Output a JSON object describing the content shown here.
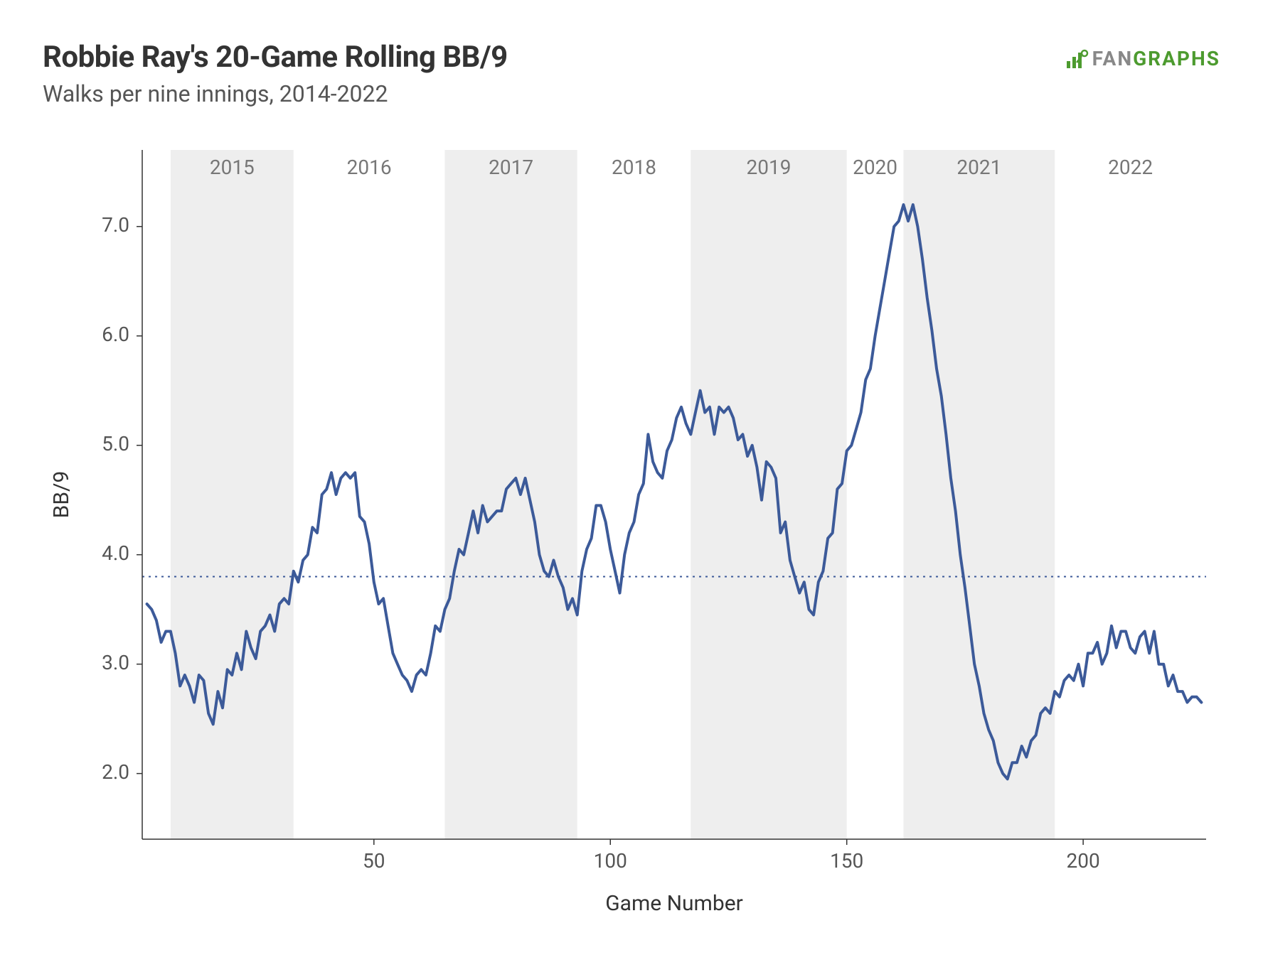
{
  "header": {
    "title": "Robbie Ray's 20-Game Rolling BB/9",
    "subtitle": "Walks per nine innings, 2014-2022"
  },
  "brand": {
    "prefix": "FAN",
    "suffix": "GRAPHS",
    "prefix_color": "#888888",
    "suffix_color": "#4d9b2f",
    "icon_color": "#4d9b2f"
  },
  "chart": {
    "type": "line",
    "xlabel": "Game Number",
    "ylabel": "BB/9",
    "xlim": [
      1,
      226
    ],
    "ylim": [
      1.4,
      7.7
    ],
    "ytick_values": [
      2.0,
      3.0,
      4.0,
      5.0,
      6.0,
      7.0
    ],
    "ytick_labels": [
      "2.0",
      "3.0",
      "4.0",
      "5.0",
      "6.0",
      "7.0"
    ],
    "xtick_values": [
      50,
      100,
      150,
      200
    ],
    "xtick_labels": [
      "50",
      "100",
      "150",
      "200"
    ],
    "reference_line": {
      "y": 3.8,
      "color": "#3c5a99",
      "dash": "3,6",
      "width": 2
    },
    "line": {
      "color": "#3c5a99",
      "width": 4
    },
    "background_color": "#ffffff",
    "panel_border_color": "#333333",
    "panel_border_width": 1.5,
    "year_bands": [
      {
        "label": "2015",
        "start": 7,
        "end": 33,
        "shaded": true
      },
      {
        "label": "2016",
        "start": 33,
        "end": 65,
        "shaded": false
      },
      {
        "label": "2017",
        "start": 65,
        "end": 93,
        "shaded": true
      },
      {
        "label": "2018",
        "start": 93,
        "end": 117,
        "shaded": false
      },
      {
        "label": "2019",
        "start": 117,
        "end": 150,
        "shaded": true
      },
      {
        "label": "2020",
        "start": 150,
        "end": 162,
        "shaded": false
      },
      {
        "label": "2021",
        "start": 162,
        "end": 194,
        "shaded": true
      },
      {
        "label": "2022",
        "start": 194,
        "end": 226,
        "shaded": false
      }
    ],
    "shade_color": "#eeeeee",
    "year_label_color": "#777777",
    "year_label_fontsize": 28,
    "axis_label_fontsize": 30,
    "tick_label_fontsize": 28,
    "data": [
      {
        "x": 2,
        "y": 3.55
      },
      {
        "x": 3,
        "y": 3.5
      },
      {
        "x": 4,
        "y": 3.4
      },
      {
        "x": 5,
        "y": 3.2
      },
      {
        "x": 6,
        "y": 3.3
      },
      {
        "x": 7,
        "y": 3.3
      },
      {
        "x": 8,
        "y": 3.1
      },
      {
        "x": 9,
        "y": 2.8
      },
      {
        "x": 10,
        "y": 2.9
      },
      {
        "x": 11,
        "y": 2.8
      },
      {
        "x": 12,
        "y": 2.65
      },
      {
        "x": 13,
        "y": 2.9
      },
      {
        "x": 14,
        "y": 2.85
      },
      {
        "x": 15,
        "y": 2.55
      },
      {
        "x": 16,
        "y": 2.45
      },
      {
        "x": 17,
        "y": 2.75
      },
      {
        "x": 18,
        "y": 2.6
      },
      {
        "x": 19,
        "y": 2.95
      },
      {
        "x": 20,
        "y": 2.9
      },
      {
        "x": 21,
        "y": 3.1
      },
      {
        "x": 22,
        "y": 2.95
      },
      {
        "x": 23,
        "y": 3.3
      },
      {
        "x": 24,
        "y": 3.15
      },
      {
        "x": 25,
        "y": 3.05
      },
      {
        "x": 26,
        "y": 3.3
      },
      {
        "x": 27,
        "y": 3.35
      },
      {
        "x": 28,
        "y": 3.45
      },
      {
        "x": 29,
        "y": 3.3
      },
      {
        "x": 30,
        "y": 3.55
      },
      {
        "x": 31,
        "y": 3.6
      },
      {
        "x": 32,
        "y": 3.55
      },
      {
        "x": 33,
        "y": 3.85
      },
      {
        "x": 34,
        "y": 3.75
      },
      {
        "x": 35,
        "y": 3.95
      },
      {
        "x": 36,
        "y": 4.0
      },
      {
        "x": 37,
        "y": 4.25
      },
      {
        "x": 38,
        "y": 4.2
      },
      {
        "x": 39,
        "y": 4.55
      },
      {
        "x": 40,
        "y": 4.6
      },
      {
        "x": 41,
        "y": 4.75
      },
      {
        "x": 42,
        "y": 4.55
      },
      {
        "x": 43,
        "y": 4.7
      },
      {
        "x": 44,
        "y": 4.75
      },
      {
        "x": 45,
        "y": 4.7
      },
      {
        "x": 46,
        "y": 4.75
      },
      {
        "x": 47,
        "y": 4.35
      },
      {
        "x": 48,
        "y": 4.3
      },
      {
        "x": 49,
        "y": 4.1
      },
      {
        "x": 50,
        "y": 3.75
      },
      {
        "x": 51,
        "y": 3.55
      },
      {
        "x": 52,
        "y": 3.6
      },
      {
        "x": 53,
        "y": 3.35
      },
      {
        "x": 54,
        "y": 3.1
      },
      {
        "x": 55,
        "y": 3.0
      },
      {
        "x": 56,
        "y": 2.9
      },
      {
        "x": 57,
        "y": 2.85
      },
      {
        "x": 58,
        "y": 2.75
      },
      {
        "x": 59,
        "y": 2.9
      },
      {
        "x": 60,
        "y": 2.95
      },
      {
        "x": 61,
        "y": 2.9
      },
      {
        "x": 62,
        "y": 3.1
      },
      {
        "x": 63,
        "y": 3.35
      },
      {
        "x": 64,
        "y": 3.3
      },
      {
        "x": 65,
        "y": 3.5
      },
      {
        "x": 66,
        "y": 3.6
      },
      {
        "x": 67,
        "y": 3.85
      },
      {
        "x": 68,
        "y": 4.05
      },
      {
        "x": 69,
        "y": 4.0
      },
      {
        "x": 70,
        "y": 4.2
      },
      {
        "x": 71,
        "y": 4.4
      },
      {
        "x": 72,
        "y": 4.2
      },
      {
        "x": 73,
        "y": 4.45
      },
      {
        "x": 74,
        "y": 4.3
      },
      {
        "x": 75,
        "y": 4.35
      },
      {
        "x": 76,
        "y": 4.4
      },
      {
        "x": 77,
        "y": 4.4
      },
      {
        "x": 78,
        "y": 4.6
      },
      {
        "x": 79,
        "y": 4.65
      },
      {
        "x": 80,
        "y": 4.7
      },
      {
        "x": 81,
        "y": 4.55
      },
      {
        "x": 82,
        "y": 4.7
      },
      {
        "x": 83,
        "y": 4.5
      },
      {
        "x": 84,
        "y": 4.3
      },
      {
        "x": 85,
        "y": 4.0
      },
      {
        "x": 86,
        "y": 3.85
      },
      {
        "x": 87,
        "y": 3.8
      },
      {
        "x": 88,
        "y": 3.95
      },
      {
        "x": 89,
        "y": 3.8
      },
      {
        "x": 90,
        "y": 3.7
      },
      {
        "x": 91,
        "y": 3.5
      },
      {
        "x": 92,
        "y": 3.6
      },
      {
        "x": 93,
        "y": 3.45
      },
      {
        "x": 94,
        "y": 3.85
      },
      {
        "x": 95,
        "y": 4.05
      },
      {
        "x": 96,
        "y": 4.15
      },
      {
        "x": 97,
        "y": 4.45
      },
      {
        "x": 98,
        "y": 4.45
      },
      {
        "x": 99,
        "y": 4.3
      },
      {
        "x": 100,
        "y": 4.05
      },
      {
        "x": 101,
        "y": 3.85
      },
      {
        "x": 102,
        "y": 3.65
      },
      {
        "x": 103,
        "y": 4.0
      },
      {
        "x": 104,
        "y": 4.2
      },
      {
        "x": 105,
        "y": 4.3
      },
      {
        "x": 106,
        "y": 4.55
      },
      {
        "x": 107,
        "y": 4.65
      },
      {
        "x": 108,
        "y": 5.1
      },
      {
        "x": 109,
        "y": 4.85
      },
      {
        "x": 110,
        "y": 4.75
      },
      {
        "x": 111,
        "y": 4.7
      },
      {
        "x": 112,
        "y": 4.95
      },
      {
        "x": 113,
        "y": 5.05
      },
      {
        "x": 114,
        "y": 5.25
      },
      {
        "x": 115,
        "y": 5.35
      },
      {
        "x": 116,
        "y": 5.2
      },
      {
        "x": 117,
        "y": 5.1
      },
      {
        "x": 118,
        "y": 5.3
      },
      {
        "x": 119,
        "y": 5.5
      },
      {
        "x": 120,
        "y": 5.3
      },
      {
        "x": 121,
        "y": 5.35
      },
      {
        "x": 122,
        "y": 5.1
      },
      {
        "x": 123,
        "y": 5.35
      },
      {
        "x": 124,
        "y": 5.3
      },
      {
        "x": 125,
        "y": 5.35
      },
      {
        "x": 126,
        "y": 5.25
      },
      {
        "x": 127,
        "y": 5.05
      },
      {
        "x": 128,
        "y": 5.1
      },
      {
        "x": 129,
        "y": 4.9
      },
      {
        "x": 130,
        "y": 5.0
      },
      {
        "x": 131,
        "y": 4.8
      },
      {
        "x": 132,
        "y": 4.5
      },
      {
        "x": 133,
        "y": 4.85
      },
      {
        "x": 134,
        "y": 4.8
      },
      {
        "x": 135,
        "y": 4.7
      },
      {
        "x": 136,
        "y": 4.2
      },
      {
        "x": 137,
        "y": 4.3
      },
      {
        "x": 138,
        "y": 3.95
      },
      {
        "x": 139,
        "y": 3.8
      },
      {
        "x": 140,
        "y": 3.65
      },
      {
        "x": 141,
        "y": 3.75
      },
      {
        "x": 142,
        "y": 3.5
      },
      {
        "x": 143,
        "y": 3.45
      },
      {
        "x": 144,
        "y": 3.75
      },
      {
        "x": 145,
        "y": 3.85
      },
      {
        "x": 146,
        "y": 4.15
      },
      {
        "x": 147,
        "y": 4.2
      },
      {
        "x": 148,
        "y": 4.6
      },
      {
        "x": 149,
        "y": 4.65
      },
      {
        "x": 150,
        "y": 4.95
      },
      {
        "x": 151,
        "y": 5.0
      },
      {
        "x": 152,
        "y": 5.15
      },
      {
        "x": 153,
        "y": 5.3
      },
      {
        "x": 154,
        "y": 5.6
      },
      {
        "x": 155,
        "y": 5.7
      },
      {
        "x": 156,
        "y": 6.0
      },
      {
        "x": 157,
        "y": 6.25
      },
      {
        "x": 158,
        "y": 6.5
      },
      {
        "x": 159,
        "y": 6.75
      },
      {
        "x": 160,
        "y": 7.0
      },
      {
        "x": 161,
        "y": 7.05
      },
      {
        "x": 162,
        "y": 7.2
      },
      {
        "x": 163,
        "y": 7.05
      },
      {
        "x": 164,
        "y": 7.2
      },
      {
        "x": 165,
        "y": 7.0
      },
      {
        "x": 166,
        "y": 6.7
      },
      {
        "x": 167,
        "y": 6.35
      },
      {
        "x": 168,
        "y": 6.05
      },
      {
        "x": 169,
        "y": 5.7
      },
      {
        "x": 170,
        "y": 5.45
      },
      {
        "x": 171,
        "y": 5.1
      },
      {
        "x": 172,
        "y": 4.7
      },
      {
        "x": 173,
        "y": 4.4
      },
      {
        "x": 174,
        "y": 4.0
      },
      {
        "x": 175,
        "y": 3.7
      },
      {
        "x": 176,
        "y": 3.35
      },
      {
        "x": 177,
        "y": 3.0
      },
      {
        "x": 178,
        "y": 2.8
      },
      {
        "x": 179,
        "y": 2.55
      },
      {
        "x": 180,
        "y": 2.4
      },
      {
        "x": 181,
        "y": 2.3
      },
      {
        "x": 182,
        "y": 2.1
      },
      {
        "x": 183,
        "y": 2.0
      },
      {
        "x": 184,
        "y": 1.95
      },
      {
        "x": 185,
        "y": 2.1
      },
      {
        "x": 186,
        "y": 2.1
      },
      {
        "x": 187,
        "y": 2.25
      },
      {
        "x": 188,
        "y": 2.15
      },
      {
        "x": 189,
        "y": 2.3
      },
      {
        "x": 190,
        "y": 2.35
      },
      {
        "x": 191,
        "y": 2.55
      },
      {
        "x": 192,
        "y": 2.6
      },
      {
        "x": 193,
        "y": 2.55
      },
      {
        "x": 194,
        "y": 2.75
      },
      {
        "x": 195,
        "y": 2.7
      },
      {
        "x": 196,
        "y": 2.85
      },
      {
        "x": 197,
        "y": 2.9
      },
      {
        "x": 198,
        "y": 2.85
      },
      {
        "x": 199,
        "y": 3.0
      },
      {
        "x": 200,
        "y": 2.8
      },
      {
        "x": 201,
        "y": 3.1
      },
      {
        "x": 202,
        "y": 3.1
      },
      {
        "x": 203,
        "y": 3.2
      },
      {
        "x": 204,
        "y": 3.0
      },
      {
        "x": 205,
        "y": 3.1
      },
      {
        "x": 206,
        "y": 3.35
      },
      {
        "x": 207,
        "y": 3.15
      },
      {
        "x": 208,
        "y": 3.3
      },
      {
        "x": 209,
        "y": 3.3
      },
      {
        "x": 210,
        "y": 3.15
      },
      {
        "x": 211,
        "y": 3.1
      },
      {
        "x": 212,
        "y": 3.25
      },
      {
        "x": 213,
        "y": 3.3
      },
      {
        "x": 214,
        "y": 3.1
      },
      {
        "x": 215,
        "y": 3.3
      },
      {
        "x": 216,
        "y": 3.0
      },
      {
        "x": 217,
        "y": 3.0
      },
      {
        "x": 218,
        "y": 2.8
      },
      {
        "x": 219,
        "y": 2.9
      },
      {
        "x": 220,
        "y": 2.75
      },
      {
        "x": 221,
        "y": 2.75
      },
      {
        "x": 222,
        "y": 2.65
      },
      {
        "x": 223,
        "y": 2.7
      },
      {
        "x": 224,
        "y": 2.7
      },
      {
        "x": 225,
        "y": 2.65
      }
    ]
  }
}
